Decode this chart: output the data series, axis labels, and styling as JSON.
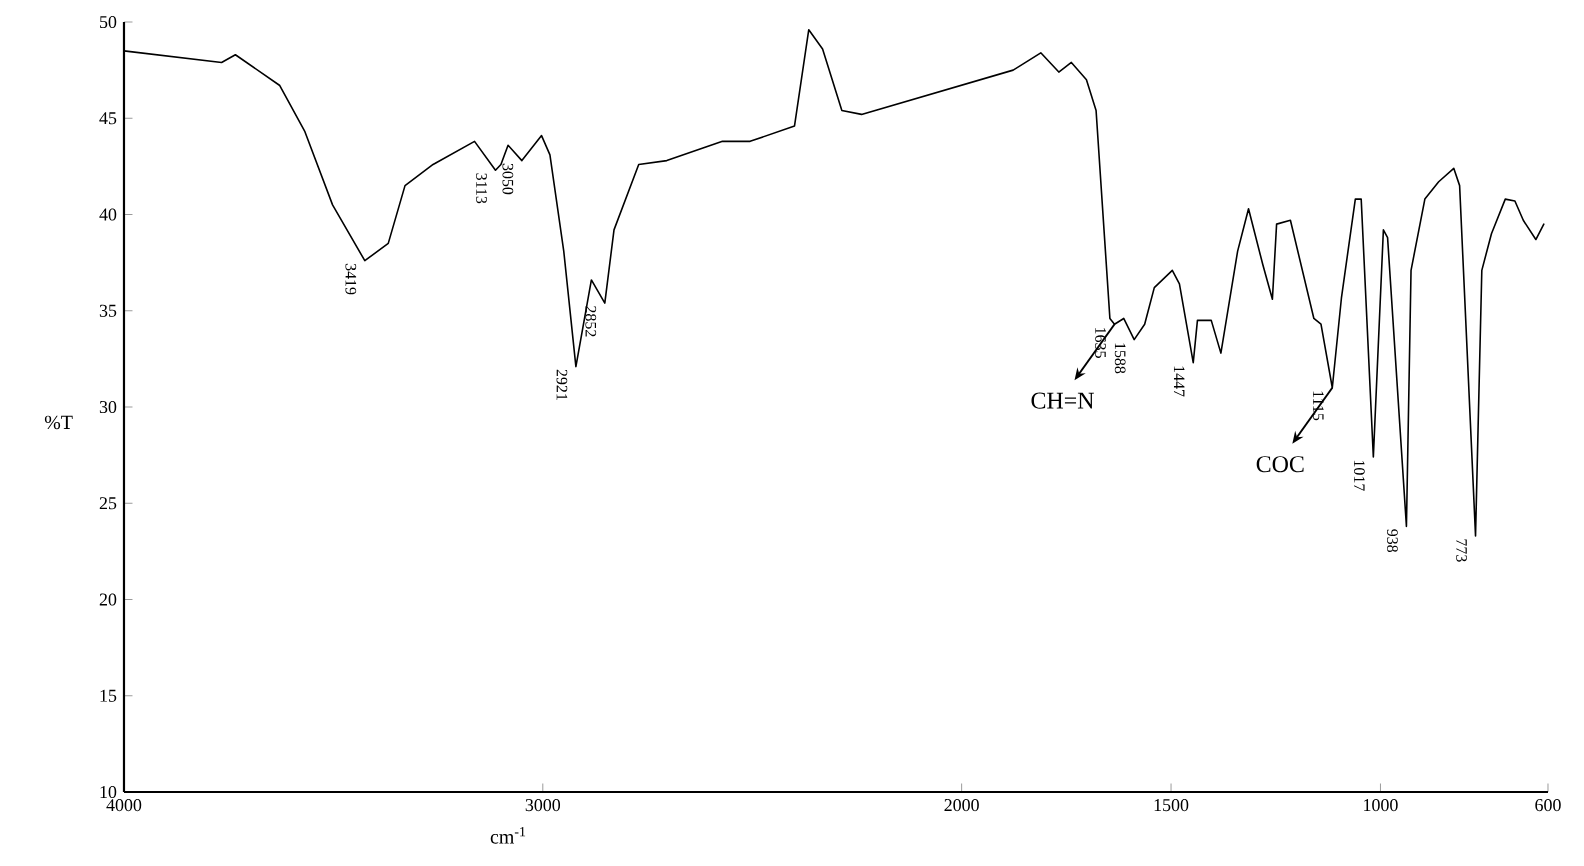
{
  "chart_data": {
    "type": "line",
    "color": "#000000",
    "xlabel": "cm$^{-1}$",
    "ylabel": "%T",
    "xlim": [
      4000,
      600
    ],
    "ylim": [
      10,
      50
    ],
    "xticks": [
      4000,
      3000,
      2000,
      1500,
      1000,
      600
    ],
    "yticks": [
      10,
      15,
      20,
      25,
      30,
      35,
      40,
      45,
      50
    ],
    "x": [
      4000,
      3767,
      3734,
      3628,
      3568,
      3502,
      3425,
      3369,
      3329,
      3262,
      3163,
      3113,
      3100,
      3083,
      3050,
      3003,
      2983,
      2950,
      2921,
      2884,
      2852,
      2830,
      2771,
      2704,
      2571,
      2505,
      2399,
      2365,
      2332,
      2286,
      2239,
      1877,
      1811,
      1768,
      1738,
      1702,
      1679,
      1646,
      1635,
      1613,
      1588,
      1563,
      1540,
      1497,
      1480,
      1447,
      1437,
      1404,
      1381,
      1341,
      1315,
      1281,
      1258,
      1248,
      1215,
      1159,
      1142,
      1115,
      1093,
      1060,
      1046,
      1017,
      993,
      983,
      938,
      927,
      894,
      861,
      825,
      811,
      773,
      758,
      735,
      702,
      679,
      659,
      629,
      610
    ],
    "values": [
      48.5,
      47.9,
      48.3,
      46.7,
      44.3,
      40.5,
      37.6,
      38.5,
      41.5,
      42.6,
      43.8,
      42.3,
      42.6,
      43.6,
      42.8,
      44.1,
      43.1,
      38.1,
      32.1,
      36.6,
      35.4,
      39.2,
      42.6,
      42.8,
      43.8,
      43.8,
      44.6,
      49.6,
      48.6,
      45.4,
      45.2,
      47.5,
      48.4,
      47.4,
      47.9,
      47.0,
      45.4,
      34.6,
      34.3,
      34.6,
      33.5,
      34.3,
      36.2,
      37.1,
      36.4,
      32.3,
      34.5,
      34.5,
      32.8,
      38.1,
      40.3,
      37.4,
      35.6,
      39.5,
      39.7,
      34.6,
      34.3,
      31.0,
      35.7,
      40.8,
      40.8,
      27.4,
      39.2,
      38.8,
      23.8,
      37.1,
      40.8,
      41.7,
      42.4,
      41.5,
      23.3,
      37.1,
      39.0,
      40.8,
      40.7,
      39.7,
      38.7,
      39.5
    ],
    "annotations": [
      {
        "text": "3419",
        "x": 3425,
        "y": 37.6
      },
      {
        "text": "3113",
        "x": 3113,
        "y": 42.3
      },
      {
        "text": "3050",
        "x": 3050,
        "y": 42.8
      },
      {
        "text": "2921",
        "x": 2921,
        "y": 32.1
      },
      {
        "text": "2852",
        "x": 2852,
        "y": 35.4
      },
      {
        "text": "1635",
        "x": 1635,
        "y": 34.3
      },
      {
        "text": "1588",
        "x": 1588,
        "y": 33.5
      },
      {
        "text": "1447",
        "x": 1447,
        "y": 32.3
      },
      {
        "text": "1115",
        "x": 1115,
        "y": 31.0
      },
      {
        "text": "1017",
        "x": 1017,
        "y": 27.4
      },
      {
        "text": "938",
        "x": 938,
        "y": 23.8
      },
      {
        "text": "773",
        "x": 773,
        "y": 23.3
      },
      {
        "text": "CH=N",
        "x": 1635,
        "y": 34.3
      },
      {
        "text": "COC",
        "x": 1115,
        "y": 31.0
      }
    ]
  }
}
